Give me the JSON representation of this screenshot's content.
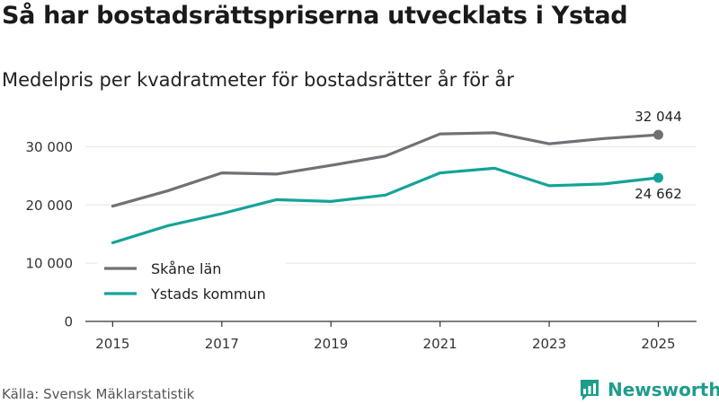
{
  "header": {
    "title": "Så har bostadsrättspriserna utvecklats i Ystad",
    "subtitle": "Medelpris per kvadratmeter för bostadsrätter år för år"
  },
  "footer": {
    "source": "Källa: Svensk Mäklarstatistik",
    "brand": "Newsworthy",
    "brand_icon": "newsworthy-logo-icon"
  },
  "chart_data": {
    "type": "line",
    "title": "Så har bostadsrättspriserna utvecklats i Ystad",
    "subtitle": "Medelpris per kvadratmeter för bostadsrätter år för år",
    "xlabel": "",
    "ylabel": "",
    "x": [
      2015,
      2016,
      2017,
      2018,
      2019,
      2020,
      2021,
      2022,
      2023,
      2024,
      2025
    ],
    "x_tick_labels": [
      "2015",
      "2017",
      "2019",
      "2021",
      "2023",
      "2025"
    ],
    "y_tick_labels": [
      "0",
      "10 000",
      "20 000",
      "30 000"
    ],
    "y_ticks": [
      0,
      10000,
      20000,
      30000
    ],
    "xlim": [
      2014.5,
      2025.7
    ],
    "ylim": [
      0,
      35000
    ],
    "grid": true,
    "legend_position": "bottom-left",
    "series": [
      {
        "name": "Skåne län",
        "color": "#707075",
        "values": [
          19800,
          22400,
          25500,
          25300,
          26800,
          28400,
          32200,
          32400,
          30500,
          31400,
          32044
        ],
        "end_label": "32 044"
      },
      {
        "name": "Ystads kommun",
        "color": "#14a398",
        "values": [
          13500,
          16400,
          18500,
          20900,
          20600,
          21700,
          25500,
          26300,
          23300,
          23600,
          24662
        ],
        "end_label": "24 662"
      }
    ]
  }
}
